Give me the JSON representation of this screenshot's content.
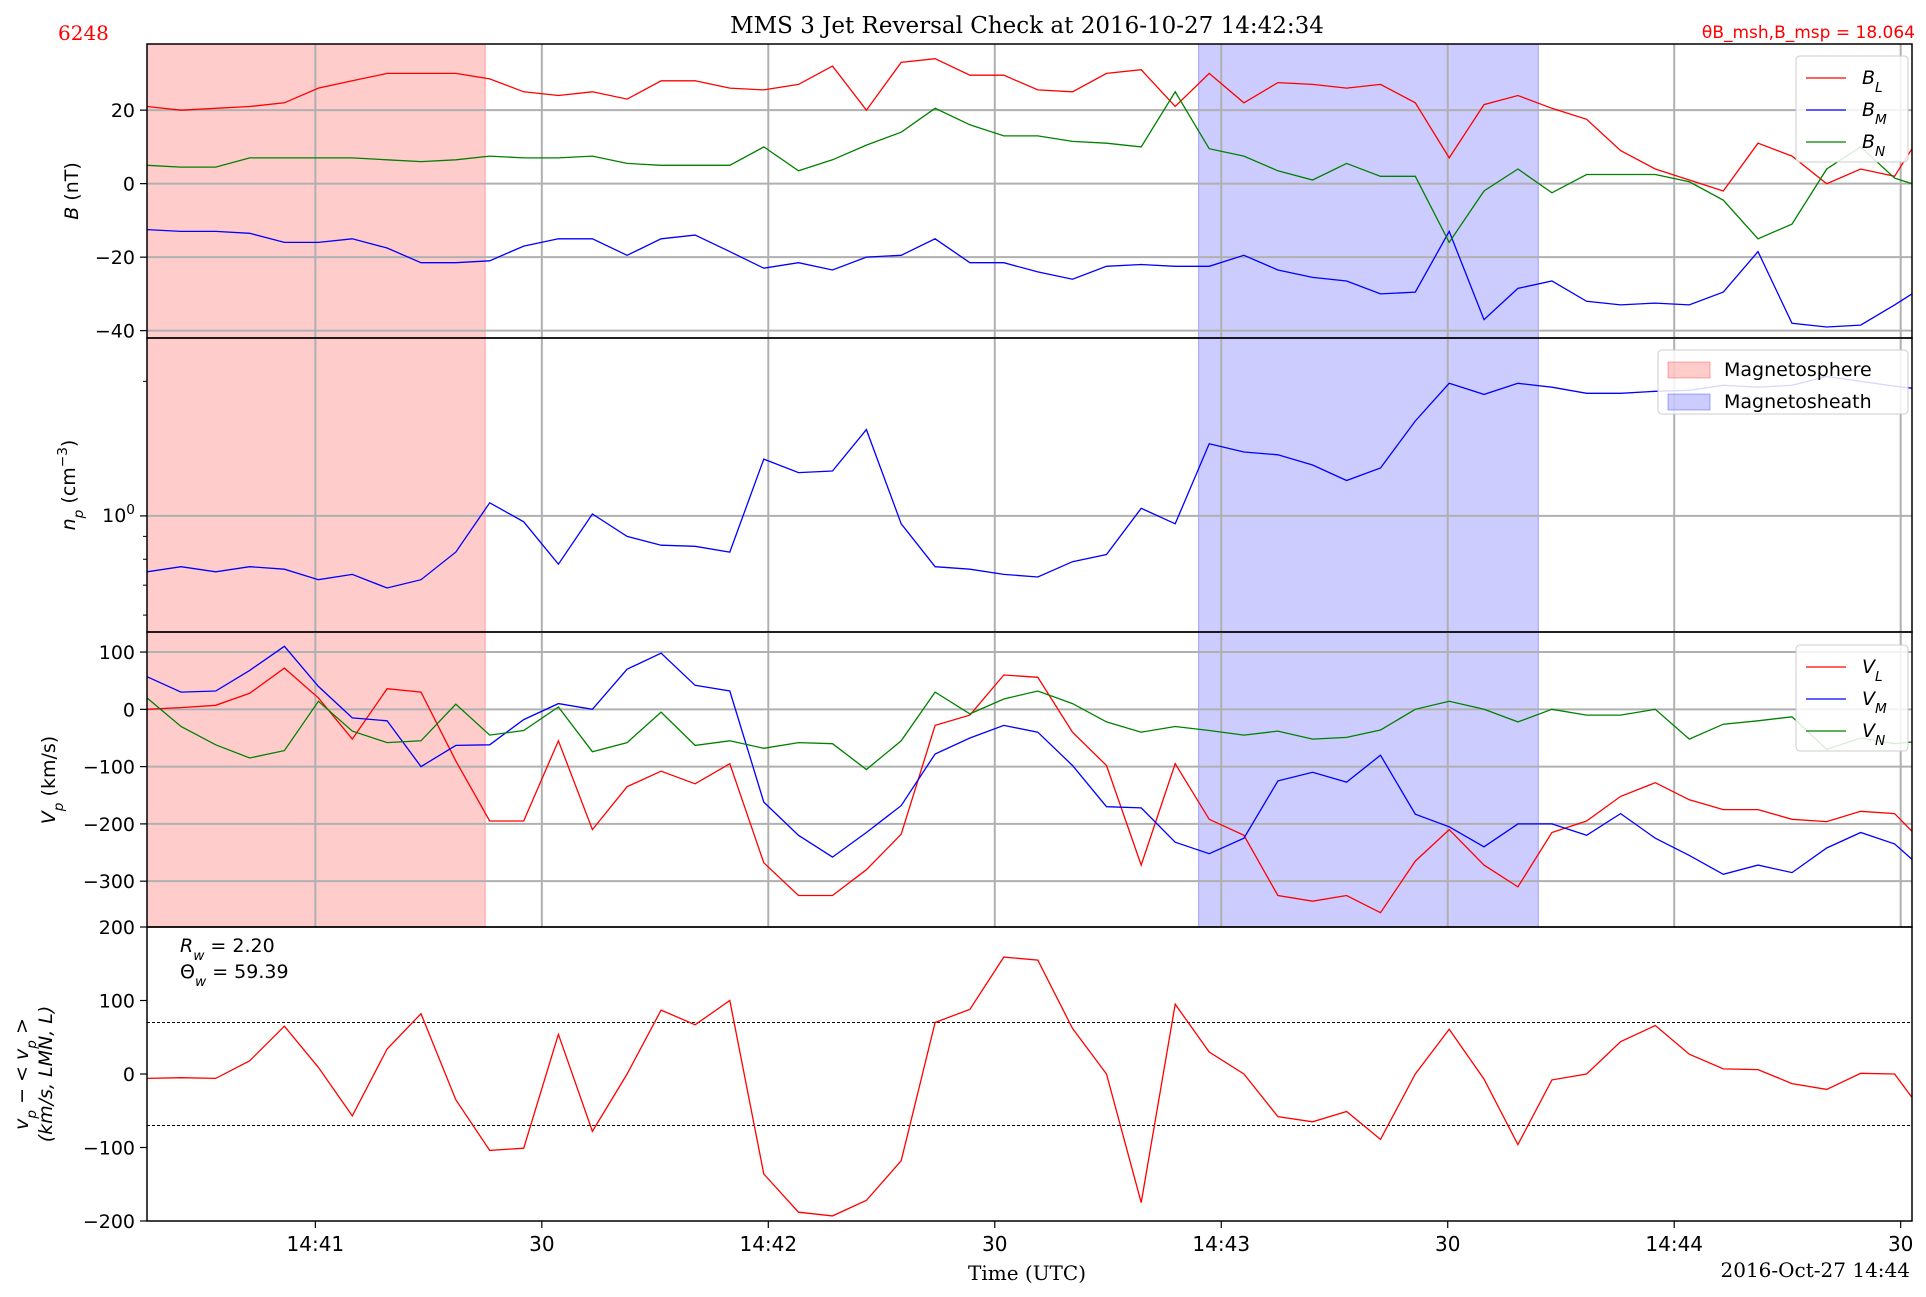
{
  "figure": {
    "title": "MMS 3 Jet Reversal Check at 2016-10-27 14:42:34",
    "id_label": "6248",
    "theta_label": "θB_msh,B_msp = 18.064",
    "xlabel": "Time (UTC)",
    "date_label": "2016-Oct-27 14:44",
    "x_ticks": [
      {
        "t": 60,
        "label": "14:41"
      },
      {
        "t": 90,
        "label": "30"
      },
      {
        "t": 120,
        "label": "14:42"
      },
      {
        "t": 150,
        "label": "30"
      },
      {
        "t": 180,
        "label": "14:43"
      },
      {
        "t": 210,
        "label": "30"
      },
      {
        "t": 240,
        "label": "14:44"
      },
      {
        "t": 270,
        "label": "30"
      }
    ],
    "x_range_s": [
      37.7,
      271.5
    ],
    "colors": {
      "red": "#ff0000",
      "blue": "#0000ff",
      "green": "#008000"
    }
  },
  "regions": [
    {
      "name": "Magnetosphere",
      "t0": 37.7,
      "t1": 82.5,
      "color": "#ff0000"
    },
    {
      "name": "Magnetosheath",
      "t0": 177.0,
      "t1": 222.0,
      "color": "#0000ff"
    }
  ],
  "chart_data": [
    {
      "type": "line",
      "ylabel": "B (nT)",
      "ylim": [
        -42,
        38
      ],
      "yticks": [
        -40,
        -20,
        0,
        20
      ],
      "legend_position": "top-right",
      "x": [
        37.7,
        42.2,
        46.8,
        51.3,
        55.9,
        60.4,
        64.9,
        69.5,
        74.0,
        78.6,
        83.1,
        87.6,
        92.2,
        96.7,
        101.3,
        105.8,
        110.3,
        114.9,
        119.4,
        124.0,
        128.5,
        133.0,
        137.6,
        142.1,
        146.7,
        151.2,
        155.7,
        160.3,
        164.8,
        169.4,
        173.9,
        178.4,
        183.0,
        187.5,
        192.1,
        196.6,
        201.1,
        205.7,
        210.2,
        214.8,
        219.3,
        223.8,
        228.4,
        232.9,
        237.5,
        242.0,
        246.5,
        251.1,
        255.6,
        260.2,
        264.7,
        269.2,
        271.5
      ],
      "series": [
        {
          "name": "B_L",
          "color": "#ff0000",
          "values": [
            21,
            20,
            20.5,
            21,
            22,
            26,
            28,
            30,
            30,
            30,
            28.5,
            25,
            24,
            25,
            23,
            28,
            28,
            26,
            25.5,
            27,
            32,
            20,
            33,
            34,
            29.5,
            29.5,
            25.5,
            25,
            30,
            31,
            21,
            30,
            22,
            27.5,
            27,
            26,
            27,
            22,
            7,
            21.5,
            24,
            20.5,
            17.5,
            9,
            4,
            1,
            -2,
            11,
            7.5,
            0,
            4,
            2,
            9.5
          ]
        },
        {
          "name": "B_M",
          "color": "#0000ff",
          "values": [
            -12.5,
            -13,
            -13,
            -13.5,
            -16,
            -16,
            -15,
            -17.5,
            -21.5,
            -21.5,
            -21,
            -17,
            -15,
            -15,
            -19.5,
            -15,
            -14,
            -18.5,
            -23,
            -21.5,
            -23.5,
            -20,
            -19.5,
            -15,
            -21.5,
            -21.5,
            -24,
            -26,
            -22.5,
            -22,
            -22.5,
            -22.5,
            -19.5,
            -23.5,
            -25.5,
            -26.5,
            -30,
            -29.5,
            -13,
            -37,
            -28.5,
            -26.5,
            -32,
            -33,
            -32.5,
            -33,
            -29.5,
            -18.5,
            -38,
            -39,
            -38.5,
            -33,
            -30
          ]
        },
        {
          "name": "B_N",
          "color": "#008000",
          "values": [
            5,
            4.5,
            4.5,
            7,
            7,
            7,
            7,
            6.5,
            6,
            6.5,
            7.5,
            7,
            7,
            7.5,
            5.5,
            5,
            5,
            5,
            10,
            3.5,
            6.5,
            10.5,
            14,
            20.5,
            16,
            13,
            13,
            11.5,
            11,
            10,
            25,
            9.5,
            7.5,
            3.5,
            1,
            5.5,
            2,
            2,
            -16,
            -2,
            4,
            -2.5,
            2.5,
            2.5,
            2.5,
            0.5,
            -4.5,
            -15,
            -11,
            4,
            10,
            1.5,
            0
          ]
        }
      ]
    },
    {
      "type": "line",
      "ylabel": "n_p (cm^-3)",
      "yscale": "log",
      "ylim": [
        0.55,
        2.5
      ],
      "yticks": [
        {
          "value": 1.0,
          "label": "10^0"
        }
      ],
      "legend_position": "top-right",
      "legend": [
        "Magnetosphere",
        "Magnetosheath"
      ],
      "x": [
        37.7,
        42.2,
        46.8,
        51.3,
        55.9,
        60.4,
        64.9,
        69.5,
        74.0,
        78.6,
        83.1,
        87.6,
        92.2,
        96.7,
        101.3,
        105.8,
        110.3,
        114.9,
        119.4,
        124.0,
        128.5,
        133.0,
        137.6,
        142.1,
        146.7,
        151.2,
        155.7,
        160.3,
        164.8,
        169.4,
        173.9,
        178.4,
        183.0,
        187.5,
        192.1,
        196.6,
        201.1,
        205.7,
        210.2,
        214.8,
        219.3,
        223.8,
        228.4,
        232.9,
        237.5,
        242.0,
        246.5,
        251.1,
        255.6,
        260.2,
        264.7,
        269.2,
        271.5
      ],
      "series": [
        {
          "name": "n_p",
          "color": "#0000ff",
          "values": [
            0.75,
            0.77,
            0.75,
            0.77,
            0.76,
            0.72,
            0.74,
            0.69,
            0.72,
            0.83,
            1.07,
            0.97,
            0.78,
            1.01,
            0.9,
            0.86,
            0.855,
            0.83,
            1.34,
            1.25,
            1.26,
            1.56,
            0.96,
            0.77,
            0.76,
            0.74,
            0.73,
            0.79,
            0.82,
            1.04,
            0.96,
            1.45,
            1.39,
            1.37,
            1.3,
            1.2,
            1.28,
            1.63,
            1.98,
            1.87,
            1.98,
            1.94,
            1.88,
            1.88,
            1.9,
            1.91,
            1.96,
            1.94,
            1.96,
            2.05,
            2.0,
            1.95,
            1.93
          ]
        }
      ]
    },
    {
      "type": "line",
      "ylabel": "V_p (km/s)",
      "ylim": [
        -380,
        135
      ],
      "yticks": [
        -300,
        -200,
        -100,
        0,
        100
      ],
      "legend_position": "top-right",
      "x": [
        37.7,
        42.2,
        46.8,
        51.3,
        55.9,
        60.4,
        64.9,
        69.5,
        74.0,
        78.6,
        83.1,
        87.6,
        92.2,
        96.7,
        101.3,
        105.8,
        110.3,
        114.9,
        119.4,
        124.0,
        128.5,
        133.0,
        137.6,
        142.1,
        146.7,
        151.2,
        155.7,
        160.3,
        164.8,
        169.4,
        173.9,
        178.4,
        183.0,
        187.5,
        192.1,
        196.6,
        201.1,
        205.7,
        210.2,
        214.8,
        219.3,
        223.8,
        228.4,
        232.9,
        237.5,
        242.0,
        246.5,
        251.1,
        255.6,
        260.2,
        264.7,
        269.2,
        271.5
      ],
      "series": [
        {
          "name": "V_L",
          "color": "#ff0000",
          "values": [
            0,
            3,
            7,
            28,
            72,
            20,
            -52,
            36,
            30,
            -90,
            -195,
            -195,
            -55,
            -210,
            -135,
            -108,
            -130,
            -95,
            -268,
            -325,
            -325,
            -280,
            -218,
            -28,
            -10,
            60,
            56,
            -40,
            -98,
            -272,
            -95,
            -192,
            -220,
            -325,
            -335,
            -325,
            -355,
            -265,
            -210,
            -272,
            -310,
            -215,
            -195,
            -152,
            -128,
            -158,
            -175,
            -175,
            -192,
            -196,
            -178,
            -182,
            -213
          ]
        },
        {
          "name": "V_M",
          "color": "#0000ff",
          "values": [
            57,
            30,
            32,
            68,
            110,
            40,
            -15,
            -20,
            -100,
            -63,
            -62,
            -18,
            10,
            0,
            70,
            98,
            42,
            32,
            -162,
            -220,
            -258,
            -215,
            -168,
            -78,
            -50,
            -28,
            -40,
            -98,
            -170,
            -172,
            -232,
            -252,
            -225,
            -125,
            -110,
            -127,
            -80,
            -183,
            -205,
            -240,
            -200,
            -200,
            -220,
            -182,
            -225,
            -255,
            -288,
            -272,
            -285,
            -242,
            -215,
            -235,
            -262
          ]
        },
        {
          "name": "V_N",
          "color": "#008000",
          "values": [
            20,
            -30,
            -62,
            -85,
            -72,
            14,
            -38,
            -58,
            -55,
            9,
            -45,
            -37,
            4,
            -74,
            -58,
            -5,
            -63,
            -55,
            -68,
            -58,
            -60,
            -105,
            -55,
            30,
            -8,
            18,
            32,
            10,
            -22,
            -40,
            -30,
            -37,
            -45,
            -38,
            -52,
            -49,
            -36,
            0,
            14,
            0,
            -22,
            0,
            -10,
            -10,
            0,
            -52,
            -26,
            -20,
            -13,
            -70,
            -50,
            -60,
            -57
          ]
        }
      ]
    },
    {
      "type": "line",
      "ylabel": "v_p − <v_p> (km/s, LMN, L)",
      "ylim": [
        -200,
        200
      ],
      "yticks": [
        -200,
        -100,
        0,
        100,
        200
      ],
      "annotations": [
        "R_w = 2.20",
        "Θ_w = 59.39"
      ],
      "hlines": [
        70,
        -70
      ],
      "x": [
        37.7,
        42.2,
        46.8,
        51.3,
        55.9,
        60.4,
        64.9,
        69.5,
        74.0,
        78.6,
        83.1,
        87.6,
        92.2,
        96.7,
        101.3,
        105.8,
        110.3,
        114.9,
        119.4,
        124.0,
        128.5,
        133.0,
        137.6,
        142.1,
        146.7,
        151.2,
        155.7,
        160.3,
        164.8,
        169.4,
        173.9,
        178.4,
        183.0,
        187.5,
        192.1,
        196.6,
        201.1,
        205.7,
        210.2,
        214.8,
        219.3,
        223.8,
        228.4,
        232.9,
        237.5,
        242.0,
        246.5,
        251.1,
        255.6,
        260.2,
        264.7,
        269.2,
        271.5
      ],
      "series": [
        {
          "name": "v_p − <v_p>",
          "color": "#ff0000",
          "values": [
            -6,
            -5,
            -6,
            18,
            65,
            9,
            -57,
            34,
            82,
            -35,
            -104,
            -101,
            54,
            -78,
            0,
            87,
            67,
            100,
            -136,
            -188,
            -193,
            -172,
            -118,
            70,
            88,
            159,
            155,
            62,
            0,
            -175,
            95,
            30,
            0,
            -58,
            -65,
            -51,
            -89,
            0,
            61,
            -7,
            -96,
            -8,
            0,
            44,
            66,
            27,
            7,
            6,
            -13,
            -21,
            1,
            0,
            -32
          ]
        }
      ]
    }
  ]
}
